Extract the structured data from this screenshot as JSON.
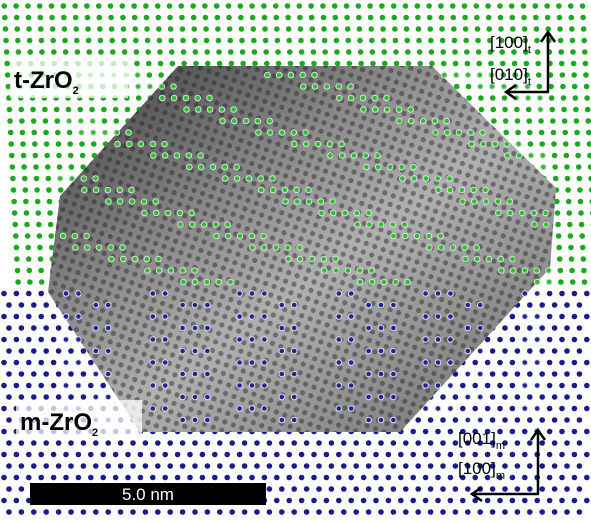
{
  "phases": {
    "tetragonal": {
      "text": "t-ZrO",
      "subscript": "2"
    },
    "monoclinic": {
      "text": "m-ZrO",
      "subscript": "2"
    }
  },
  "directions": [
    {
      "text": "[100]",
      "subscript": "t"
    },
    {
      "text": "[010]",
      "subscript": "t"
    },
    {
      "text": "[001]",
      "subscript": "m"
    },
    {
      "text": "[100]",
      "subscript": "m"
    }
  ],
  "scale_bar": "5.0 nm"
}
